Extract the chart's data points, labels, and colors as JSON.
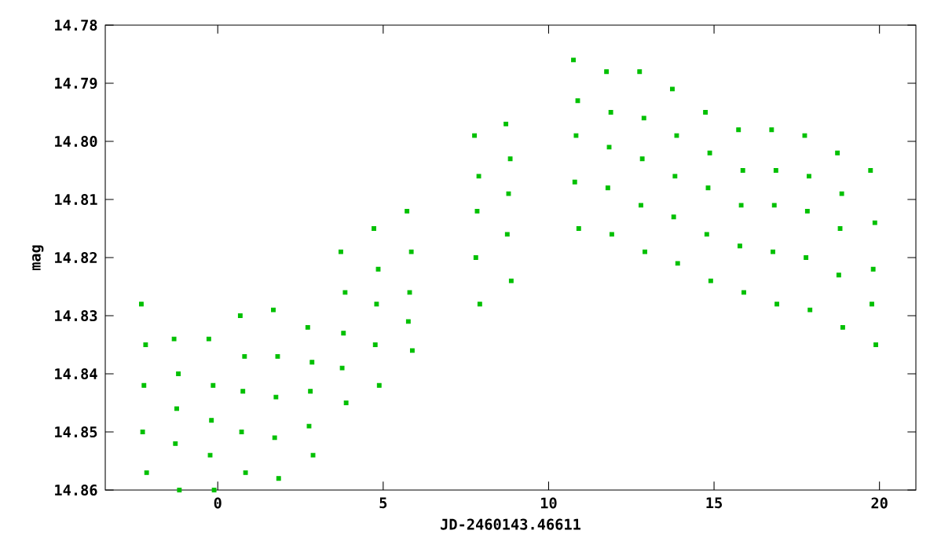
{
  "chart_data": {
    "type": "scatter",
    "xlabel": "JD-2460143.46611",
    "ylabel": "mag",
    "xlim": [
      -3.4,
      21.1
    ],
    "ylim": [
      14.86,
      14.78
    ],
    "xticks": [
      0,
      5,
      10,
      15,
      20
    ],
    "yticks": [
      {
        "value": 14.78,
        "label": "14.78"
      },
      {
        "value": 14.79,
        "label": "14.79"
      },
      {
        "value": 14.8,
        "label": "14.80"
      },
      {
        "value": 14.81,
        "label": "14.81"
      },
      {
        "value": 14.82,
        "label": "14.82"
      },
      {
        "value": 14.83,
        "label": "14.83"
      },
      {
        "value": 14.84,
        "label": "14.84"
      },
      {
        "value": 14.85,
        "label": "14.85"
      },
      {
        "value": 14.86,
        "label": "14.86"
      }
    ],
    "marker": "square",
    "grid": false,
    "series": [
      {
        "color": "#00c000",
        "x": [
          -2.31,
          -2.18,
          -2.23,
          -2.27,
          -2.15,
          -1.32,
          -1.19,
          -1.24,
          -1.28,
          -1.16,
          -0.27,
          -0.14,
          -0.19,
          -0.23,
          -0.11,
          0.68,
          0.81,
          0.76,
          0.72,
          0.84,
          1.68,
          1.81,
          1.76,
          1.72,
          1.84,
          2.72,
          2.85,
          2.8,
          2.76,
          2.88,
          3.72,
          3.85,
          3.8,
          3.76,
          3.88,
          4.72,
          4.85,
          4.8,
          4.76,
          4.88,
          5.72,
          5.85,
          5.8,
          5.76,
          5.88,
          7.76,
          7.89,
          7.84,
          7.8,
          7.92,
          8.71,
          8.84,
          8.79,
          8.75,
          8.87,
          10.75,
          10.88,
          10.83,
          10.79,
          10.91,
          11.75,
          11.88,
          11.83,
          11.79,
          11.91,
          12.75,
          12.88,
          12.83,
          12.79,
          12.91,
          13.74,
          13.87,
          13.82,
          13.78,
          13.9,
          14.74,
          14.87,
          14.82,
          14.78,
          14.9,
          15.74,
          15.87,
          15.82,
          15.78,
          15.9,
          16.74,
          16.87,
          16.82,
          16.78,
          16.9,
          17.74,
          17.87,
          17.82,
          17.78,
          17.9,
          18.73,
          18.86,
          18.81,
          18.77,
          18.89,
          19.73,
          19.86,
          19.81,
          19.77,
          19.89
        ],
        "values": [
          14.828,
          14.835,
          14.842,
          14.85,
          14.857,
          14.834,
          14.84,
          14.846,
          14.852,
          14.86,
          14.834,
          14.842,
          14.848,
          14.854,
          14.86,
          14.83,
          14.837,
          14.843,
          14.85,
          14.857,
          14.829,
          14.837,
          14.844,
          14.851,
          14.858,
          14.832,
          14.838,
          14.843,
          14.849,
          14.854,
          14.819,
          14.826,
          14.833,
          14.839,
          14.845,
          14.815,
          14.822,
          14.828,
          14.835,
          14.842,
          14.812,
          14.819,
          14.826,
          14.831,
          14.836,
          14.799,
          14.806,
          14.812,
          14.82,
          14.828,
          14.797,
          14.803,
          14.809,
          14.816,
          14.824,
          14.786,
          14.793,
          14.799,
          14.807,
          14.815,
          14.788,
          14.795,
          14.801,
          14.808,
          14.816,
          14.788,
          14.796,
          14.803,
          14.811,
          14.819,
          14.791,
          14.799,
          14.806,
          14.813,
          14.821,
          14.795,
          14.802,
          14.808,
          14.816,
          14.824,
          14.798,
          14.805,
          14.811,
          14.818,
          14.826,
          14.798,
          14.805,
          14.811,
          14.819,
          14.828,
          14.799,
          14.806,
          14.812,
          14.82,
          14.829,
          14.802,
          14.809,
          14.815,
          14.823,
          14.832,
          14.805,
          14.814,
          14.822,
          14.828,
          14.835
        ]
      }
    ]
  }
}
